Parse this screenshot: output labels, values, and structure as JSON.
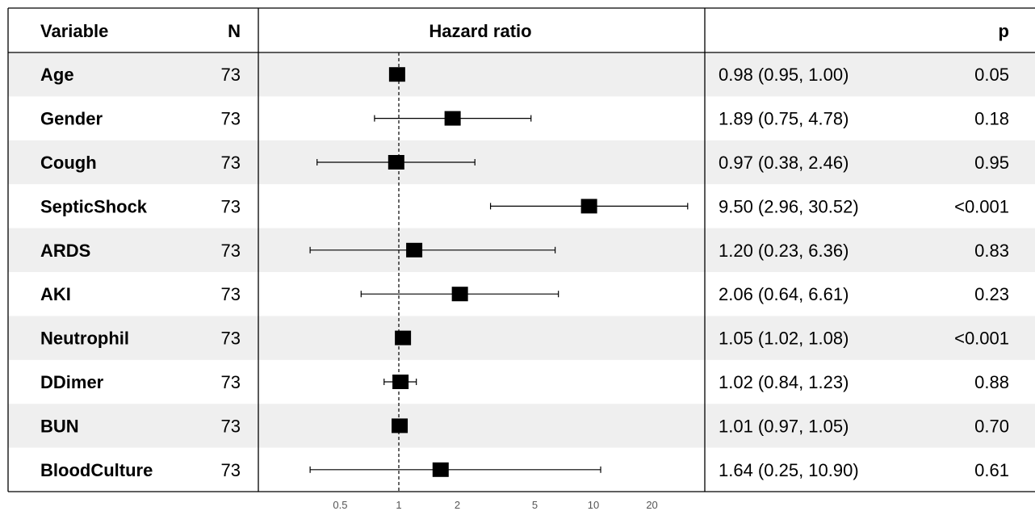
{
  "headers": {
    "variable": "Variable",
    "n": "N",
    "hr": "Hazard ratio",
    "ci": "",
    "p": "p"
  },
  "chart_data": {
    "type": "forest",
    "scale": "log",
    "reference_line": 1,
    "xlim": [
      0.35,
      35
    ],
    "ticks": [
      0.5,
      1,
      2,
      5,
      10,
      20
    ],
    "tick_labels": [
      "0.5",
      "1",
      "2",
      "5",
      "10",
      "20"
    ],
    "rows": [
      {
        "variable": "Age",
        "n": "73",
        "hr": 0.98,
        "lo": 0.95,
        "hi": 1.0,
        "ci_text": "0.98 (0.95, 1.00)",
        "p": "0.05"
      },
      {
        "variable": "Gender",
        "n": "73",
        "hr": 1.89,
        "lo": 0.75,
        "hi": 4.78,
        "ci_text": "1.89 (0.75, 4.78)",
        "p": "0.18"
      },
      {
        "variable": "Cough",
        "n": "73",
        "hr": 0.97,
        "lo": 0.38,
        "hi": 2.46,
        "ci_text": "0.97 (0.38, 2.46)",
        "p": "0.95"
      },
      {
        "variable": "SepticShock",
        "n": "73",
        "hr": 9.5,
        "lo": 2.96,
        "hi": 30.52,
        "ci_text": "9.50 (2.96, 30.52)",
        "p": "<0.001"
      },
      {
        "variable": "ARDS",
        "n": "73",
        "hr": 1.2,
        "lo": 0.23,
        "hi": 6.36,
        "ci_text": "1.20 (0.23, 6.36)",
        "p": "0.83"
      },
      {
        "variable": "AKI",
        "n": "73",
        "hr": 2.06,
        "lo": 0.64,
        "hi": 6.61,
        "ci_text": "2.06 (0.64, 6.61)",
        "p": "0.23"
      },
      {
        "variable": "Neutrophil",
        "n": "73",
        "hr": 1.05,
        "lo": 1.02,
        "hi": 1.08,
        "ci_text": "1.05 (1.02, 1.08)",
        "p": "<0.001"
      },
      {
        "variable": "DDimer",
        "n": "73",
        "hr": 1.02,
        "lo": 0.84,
        "hi": 1.23,
        "ci_text": "1.02 (0.84, 1.23)",
        "p": "0.88"
      },
      {
        "variable": "BUN",
        "n": "73",
        "hr": 1.01,
        "lo": 0.97,
        "hi": 1.05,
        "ci_text": "1.01 (0.97, 1.05)",
        "p": "0.70"
      },
      {
        "variable": "BloodCulture",
        "n": "73",
        "hr": 1.64,
        "lo": 0.25,
        "hi": 10.9,
        "ci_text": "1.64 (0.25, 10.90)",
        "p": "0.61"
      }
    ]
  },
  "colors": {
    "stripe": "#efefef",
    "marker": "#000000",
    "grid_line": "#000000"
  }
}
